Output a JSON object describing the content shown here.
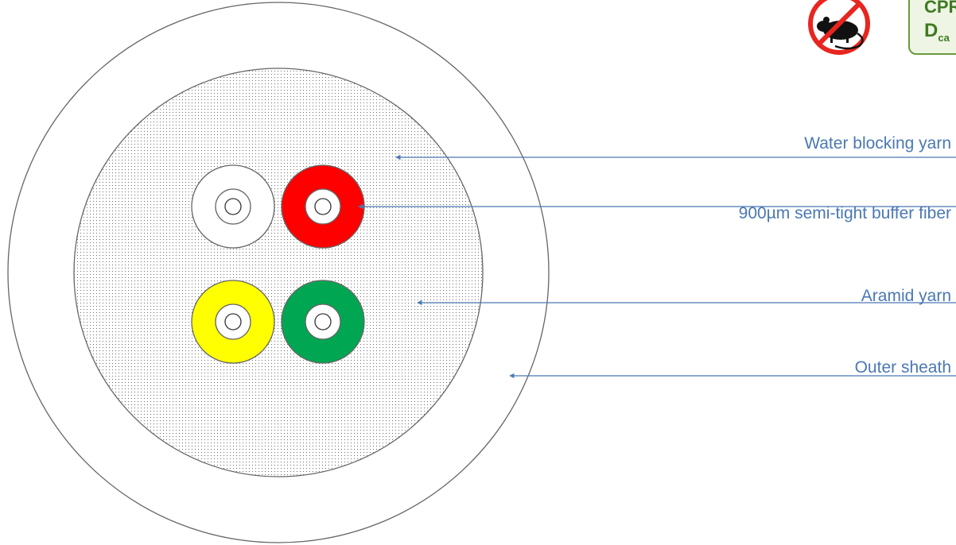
{
  "callouts": {
    "water_blocking_yarn": "Water blocking yarn",
    "buffer_fiber": "900µm semi-tight buffer fiber",
    "aramid_yarn": "Aramid yarn",
    "outer_sheath": "Outer sheath"
  },
  "badges": {
    "rodent_protection_icon": "no-rodent-icon",
    "cpr": {
      "title": "CPR",
      "class_letter": "D",
      "class_sub": "ca"
    }
  },
  "colors": {
    "callout_text": "#4a78b4",
    "arrow": "#4a78b4",
    "outline": "#666666",
    "fiber_white": "#ffffff",
    "fiber_red": "#ff0000",
    "fiber_yellow": "#ffff00",
    "fiber_green": "#00a651",
    "prohibition_red": "#e8251f",
    "cpr_green": "#3f7a22"
  }
}
